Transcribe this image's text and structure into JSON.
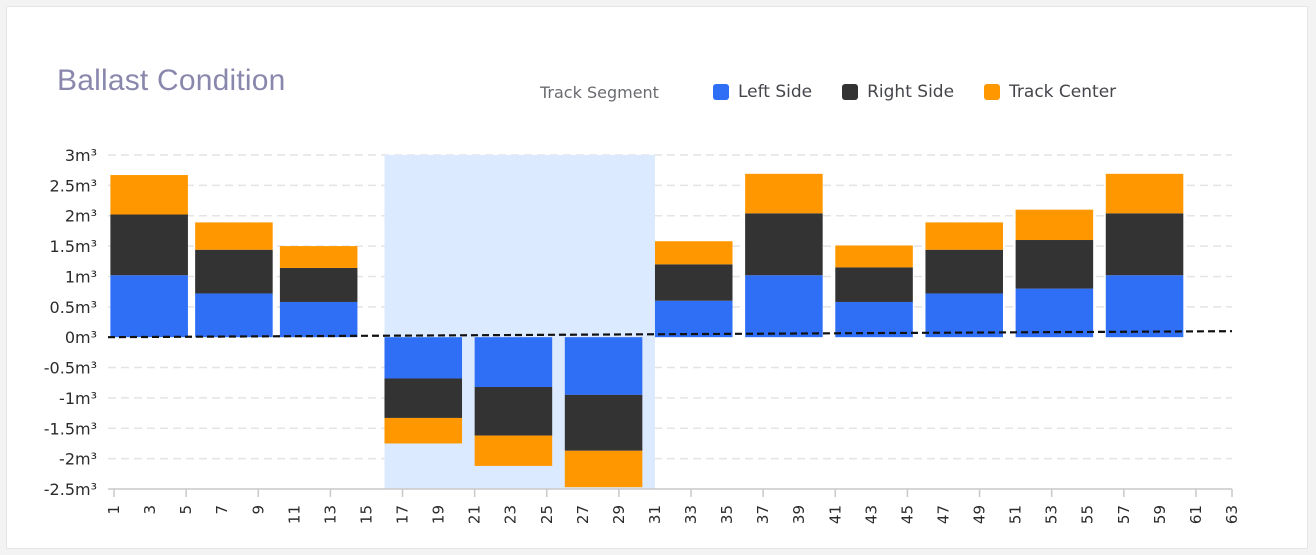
{
  "chart_data": {
    "type": "bar",
    "stacked": true,
    "title": "Ballast Condition",
    "legend_title": "Track Segment",
    "legend_position": "top",
    "x_tick_labels": [
      "1",
      "3",
      "5",
      "7",
      "9",
      "11",
      "13",
      "15",
      "17",
      "19",
      "21",
      "23",
      "25",
      "27",
      "29",
      "31",
      "33",
      "35",
      "37",
      "39",
      "41",
      "43",
      "45",
      "47",
      "49",
      "51",
      "53",
      "55",
      "57",
      "59",
      "61",
      "63"
    ],
    "x_range": [
      1,
      63
    ],
    "y_tick_labels": [
      "3m³",
      "2.5m³",
      "2m³",
      "1.5m³",
      "1m³",
      "0.5m³",
      "0m³",
      "-0.5m³",
      "-1m³",
      "-1.5m³",
      "-2m³",
      "-2.5m³"
    ],
    "y_ticks": [
      3,
      2.5,
      2,
      1.5,
      1,
      0.5,
      0,
      -0.5,
      -1,
      -1.5,
      -2,
      -2.5
    ],
    "ylim": [
      -2.5,
      3
    ],
    "grid": true,
    "zero_line": "dashed",
    "highlight_range": [
      16,
      31
    ],
    "highlight_color": "#dbeafe",
    "bars": [
      {
        "x0": 0.8,
        "x1": 5.1,
        "left": 1.02,
        "right": 1.0,
        "center": 0.65
      },
      {
        "x0": 5.5,
        "x1": 9.8,
        "left": 0.72,
        "right": 0.72,
        "center": 0.45
      },
      {
        "x0": 10.2,
        "x1": 14.5,
        "left": 0.58,
        "right": 0.56,
        "center": 0.36
      },
      {
        "x0": 16.0,
        "x1": 20.3,
        "left": -0.68,
        "right": -0.65,
        "center": -0.42
      },
      {
        "x0": 21.0,
        "x1": 25.3,
        "left": -0.82,
        "right": -0.8,
        "center": -0.5
      },
      {
        "x0": 26.0,
        "x1": 30.3,
        "left": -0.95,
        "right": -0.92,
        "center": -0.6
      },
      {
        "x0": 31.0,
        "x1": 35.3,
        "left": 0.6,
        "right": 0.6,
        "center": 0.38
      },
      {
        "x0": 36.0,
        "x1": 40.3,
        "left": 1.02,
        "right": 1.02,
        "center": 0.65
      },
      {
        "x0": 41.0,
        "x1": 45.3,
        "left": 0.58,
        "right": 0.57,
        "center": 0.36
      },
      {
        "x0": 46.0,
        "x1": 50.3,
        "left": 0.72,
        "right": 0.72,
        "center": 0.45
      },
      {
        "x0": 51.0,
        "x1": 55.3,
        "left": 0.8,
        "right": 0.8,
        "center": 0.5
      },
      {
        "x0": 56.0,
        "x1": 60.3,
        "left": 1.02,
        "right": 1.02,
        "center": 0.65
      }
    ],
    "series": [
      {
        "name": "Left Side",
        "key": "left",
        "color": "#2f6ff6"
      },
      {
        "name": "Right Side",
        "key": "right",
        "color": "#333333"
      },
      {
        "name": "Track Center",
        "key": "center",
        "color": "#ff9800"
      }
    ]
  }
}
